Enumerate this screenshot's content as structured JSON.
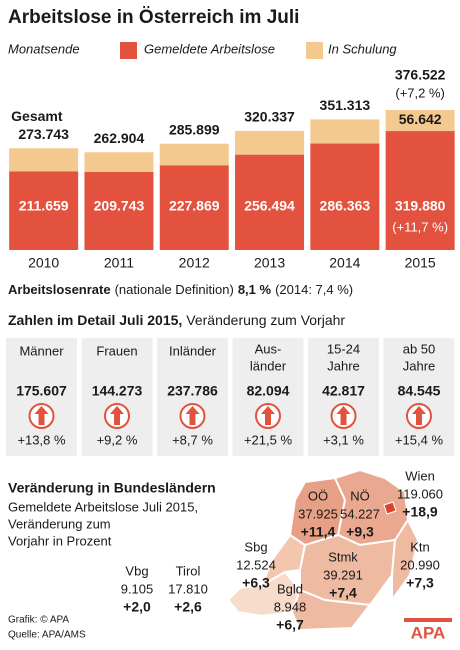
{
  "chart_data": {
    "type": "bar",
    "stacked": true,
    "title": "Arbeitslose in Österreich im Juli",
    "legend_title": "Monatsende",
    "categories": [
      "2010",
      "2011",
      "2012",
      "2013",
      "2014",
      "2015"
    ],
    "series": [
      {
        "name": "Gemeldete Arbeitslose",
        "color": "#e2523f",
        "values": [
          211659,
          209743,
          227869,
          256494,
          286363,
          319880
        ],
        "value_labels": [
          "211.659",
          "209.743",
          "227.869",
          "256.494",
          "286.363",
          "319.880"
        ],
        "change_labels": [
          null,
          null,
          null,
          null,
          null,
          "(+11,7 %)"
        ]
      },
      {
        "name": "In Schulung",
        "color": "#f3c98f",
        "values": [
          62084,
          53161,
          58030,
          63843,
          64950,
          56642
        ],
        "value_labels": [
          null,
          null,
          null,
          null,
          null,
          "56.642"
        ]
      }
    ],
    "totals": {
      "values": [
        273743,
        262904,
        285899,
        320337,
        351313,
        376522
      ],
      "value_labels": [
        "273.743",
        "262.904",
        "285.899",
        "320.337",
        "351.313",
        "376.522"
      ],
      "annotations_above": [
        "Gesamt",
        null,
        null,
        null,
        null,
        null
      ],
      "annotations_below": [
        null,
        null,
        null,
        null,
        null,
        "(+7,2 %)"
      ]
    }
  },
  "rate": {
    "label": "Arbeitslosenrate",
    "definition": "(nationale Definition)",
    "value": "8,1 %",
    "previous": "(2014: 7,4 %)"
  },
  "detail": {
    "title": "Zahlen im Detail Juli 2015,",
    "subtitle": "Veränderung zum Vorjahr",
    "groups": [
      {
        "label": [
          "Männer"
        ],
        "value": "175.607",
        "change": "+13,8 %"
      },
      {
        "label": [
          "Frauen"
        ],
        "value": "144.273",
        "change": "+9,2 %"
      },
      {
        "label": [
          "Inländer"
        ],
        "value": "237.786",
        "change": "+8,7 %"
      },
      {
        "label": [
          "Aus-",
          "länder"
        ],
        "value": "82.094",
        "change": "+21,5 %"
      },
      {
        "label": [
          "15-24",
          "Jahre"
        ],
        "value": "42.817",
        "change": "+3,1 %"
      },
      {
        "label": [
          "ab 50",
          "Jahre"
        ],
        "value": "84.545",
        "change": "+15,4 %"
      }
    ]
  },
  "states": {
    "title": "Veränderung in Bundesländern",
    "description": [
      "Gemeldete Arbeitslose Juli 2015,",
      "Veränderung zum",
      "Vorjahr in Prozent"
    ],
    "items": [
      {
        "name": "Vbg",
        "value": "9.105",
        "change": "+2,0"
      },
      {
        "name": "Tirol",
        "value": "17.810",
        "change": "+2,6"
      },
      {
        "name": "Sbg",
        "value": "12.524",
        "change": "+6,3"
      },
      {
        "name": "OÖ",
        "value": "37.925",
        "change": "+11,4"
      },
      {
        "name": "NÖ",
        "value": "54.227",
        "change": "+9,3"
      },
      {
        "name": "Wien",
        "value": "119.060",
        "change": "+18,9"
      },
      {
        "name": "Stmk",
        "value": "39.291",
        "change": "+7,4"
      },
      {
        "name": "Ktn",
        "value": "20.990",
        "change": "+7,3"
      },
      {
        "name": "Bgld",
        "value": "8.948",
        "change": "+6,7"
      }
    ]
  },
  "footer": {
    "credit": "Grafik: © APA",
    "source": "Quelle: APA/AMS",
    "logo": "APA"
  }
}
